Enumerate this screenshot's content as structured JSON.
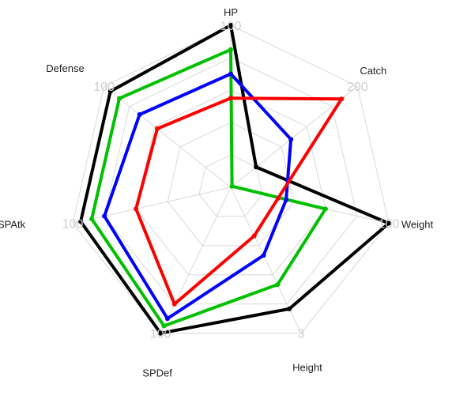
{
  "chart_data": {
    "type": "radar",
    "title": "",
    "rings": 5,
    "axes": [
      {
        "label": "HP",
        "max_label": "100",
        "max": 100
      },
      {
        "label": "Catch",
        "max_label": "200",
        "max": 200
      },
      {
        "label": "Weight",
        "max_label": "100",
        "max": 100
      },
      {
        "label": "Height",
        "max_label": "3",
        "max": 3
      },
      {
        "label": "SPDef",
        "max_label": "100",
        "max": 100
      },
      {
        "label": "SPAtk",
        "max_label": "100",
        "max": 100
      },
      {
        "label": "Defense",
        "max_label": "100",
        "max": 100
      }
    ],
    "series": [
      {
        "color": "#000000",
        "values": [
          100,
          40,
          100,
          2.5,
          100,
          95,
          95
        ]
      },
      {
        "color": "#00c000",
        "values": [
          85,
          2,
          60,
          2.0,
          95,
          88,
          88
        ]
      },
      {
        "color": "#0000ff",
        "values": [
          70,
          95,
          35,
          1.4,
          90,
          80,
          72
        ]
      },
      {
        "color": "#ff0000",
        "values": [
          55,
          175,
          30,
          1.0,
          80,
          60,
          58
        ]
      }
    ]
  }
}
